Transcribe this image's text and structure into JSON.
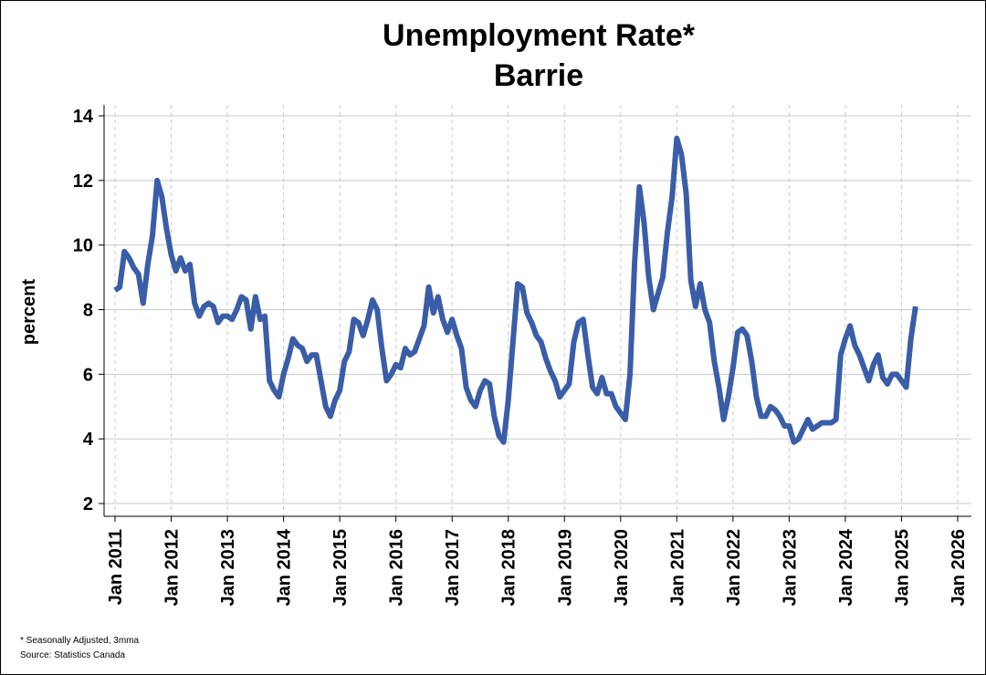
{
  "chart_data": {
    "type": "line",
    "title": "Unemployment Rate*",
    "subtitle": "Barrie",
    "xlabel": "",
    "ylabel": "percent",
    "ylim": [
      2,
      14
    ],
    "yticks": [
      2,
      4,
      6,
      8,
      10,
      12,
      14
    ],
    "x_start": "Jan 2011",
    "x_end": "Jan 2026",
    "xticks": [
      "Jan 2011",
      "Jan 2012",
      "Jan 2013",
      "Jan 2014",
      "Jan 2015",
      "Jan 2016",
      "Jan 2017",
      "Jan 2018",
      "Jan 2019",
      "Jan 2020",
      "Jan 2021",
      "Jan 2022",
      "Jan 2023",
      "Jan 2024",
      "Jan 2025",
      "Jan 2026"
    ],
    "grid": {
      "horizontal": true,
      "vertical_dashed": true
    },
    "series": [
      {
        "name": "",
        "color": "#3a5da8",
        "start": "Jan 2011",
        "frequency": "monthly",
        "values": [
          8.6,
          8.7,
          9.8,
          9.6,
          9.3,
          9.1,
          8.2,
          9.4,
          10.3,
          12.0,
          11.5,
          10.5,
          9.7,
          9.2,
          9.6,
          9.2,
          9.4,
          8.2,
          7.8,
          8.1,
          8.2,
          8.1,
          7.6,
          7.8,
          7.8,
          7.7,
          8.0,
          8.4,
          8.3,
          7.4,
          8.4,
          7.7,
          7.8,
          5.8,
          5.5,
          5.3,
          6.0,
          6.5,
          7.1,
          6.9,
          6.8,
          6.4,
          6.6,
          6.6,
          5.8,
          5.0,
          4.7,
          5.2,
          5.5,
          6.4,
          6.7,
          7.7,
          7.6,
          7.2,
          7.7,
          8.3,
          8.0,
          6.8,
          5.8,
          6.0,
          6.3,
          6.2,
          6.8,
          6.6,
          6.7,
          7.1,
          7.5,
          8.7,
          7.9,
          8.4,
          7.7,
          7.3,
          7.7,
          7.2,
          6.8,
          5.6,
          5.2,
          5.0,
          5.5,
          5.8,
          5.7,
          4.7,
          4.1,
          3.9,
          5.2,
          7.0,
          8.8,
          8.7,
          7.9,
          7.6,
          7.2,
          7.0,
          6.5,
          6.1,
          5.8,
          5.3,
          5.5,
          5.7,
          7.0,
          7.6,
          7.7,
          6.6,
          5.6,
          5.4,
          5.9,
          5.4,
          5.4,
          5.0,
          4.8,
          4.6,
          6.0,
          9.5,
          11.8,
          10.7,
          9.0,
          8.0,
          8.5,
          9.0,
          10.4,
          11.5,
          13.3,
          12.8,
          11.6,
          8.9,
          8.1,
          8.8,
          8.0,
          7.6,
          6.4,
          5.6,
          4.6,
          5.3,
          6.2,
          7.3,
          7.4,
          7.2,
          6.4,
          5.3,
          4.7,
          4.7,
          5.0,
          4.9,
          4.7,
          4.4,
          4.4,
          3.9,
          4.0,
          4.3,
          4.6,
          4.3,
          4.4,
          4.5,
          4.5,
          4.5,
          4.6,
          6.6,
          7.1,
          7.5,
          6.9,
          6.6,
          6.2,
          5.8,
          6.3,
          6.6,
          5.9,
          5.7,
          6.0,
          6.0,
          5.8,
          5.6,
          7.1,
          8.1
        ]
      }
    ]
  },
  "footnotes": {
    "note": "* Seasonally Adjusted, 3mma",
    "source": "Source: Statistics Canada"
  }
}
